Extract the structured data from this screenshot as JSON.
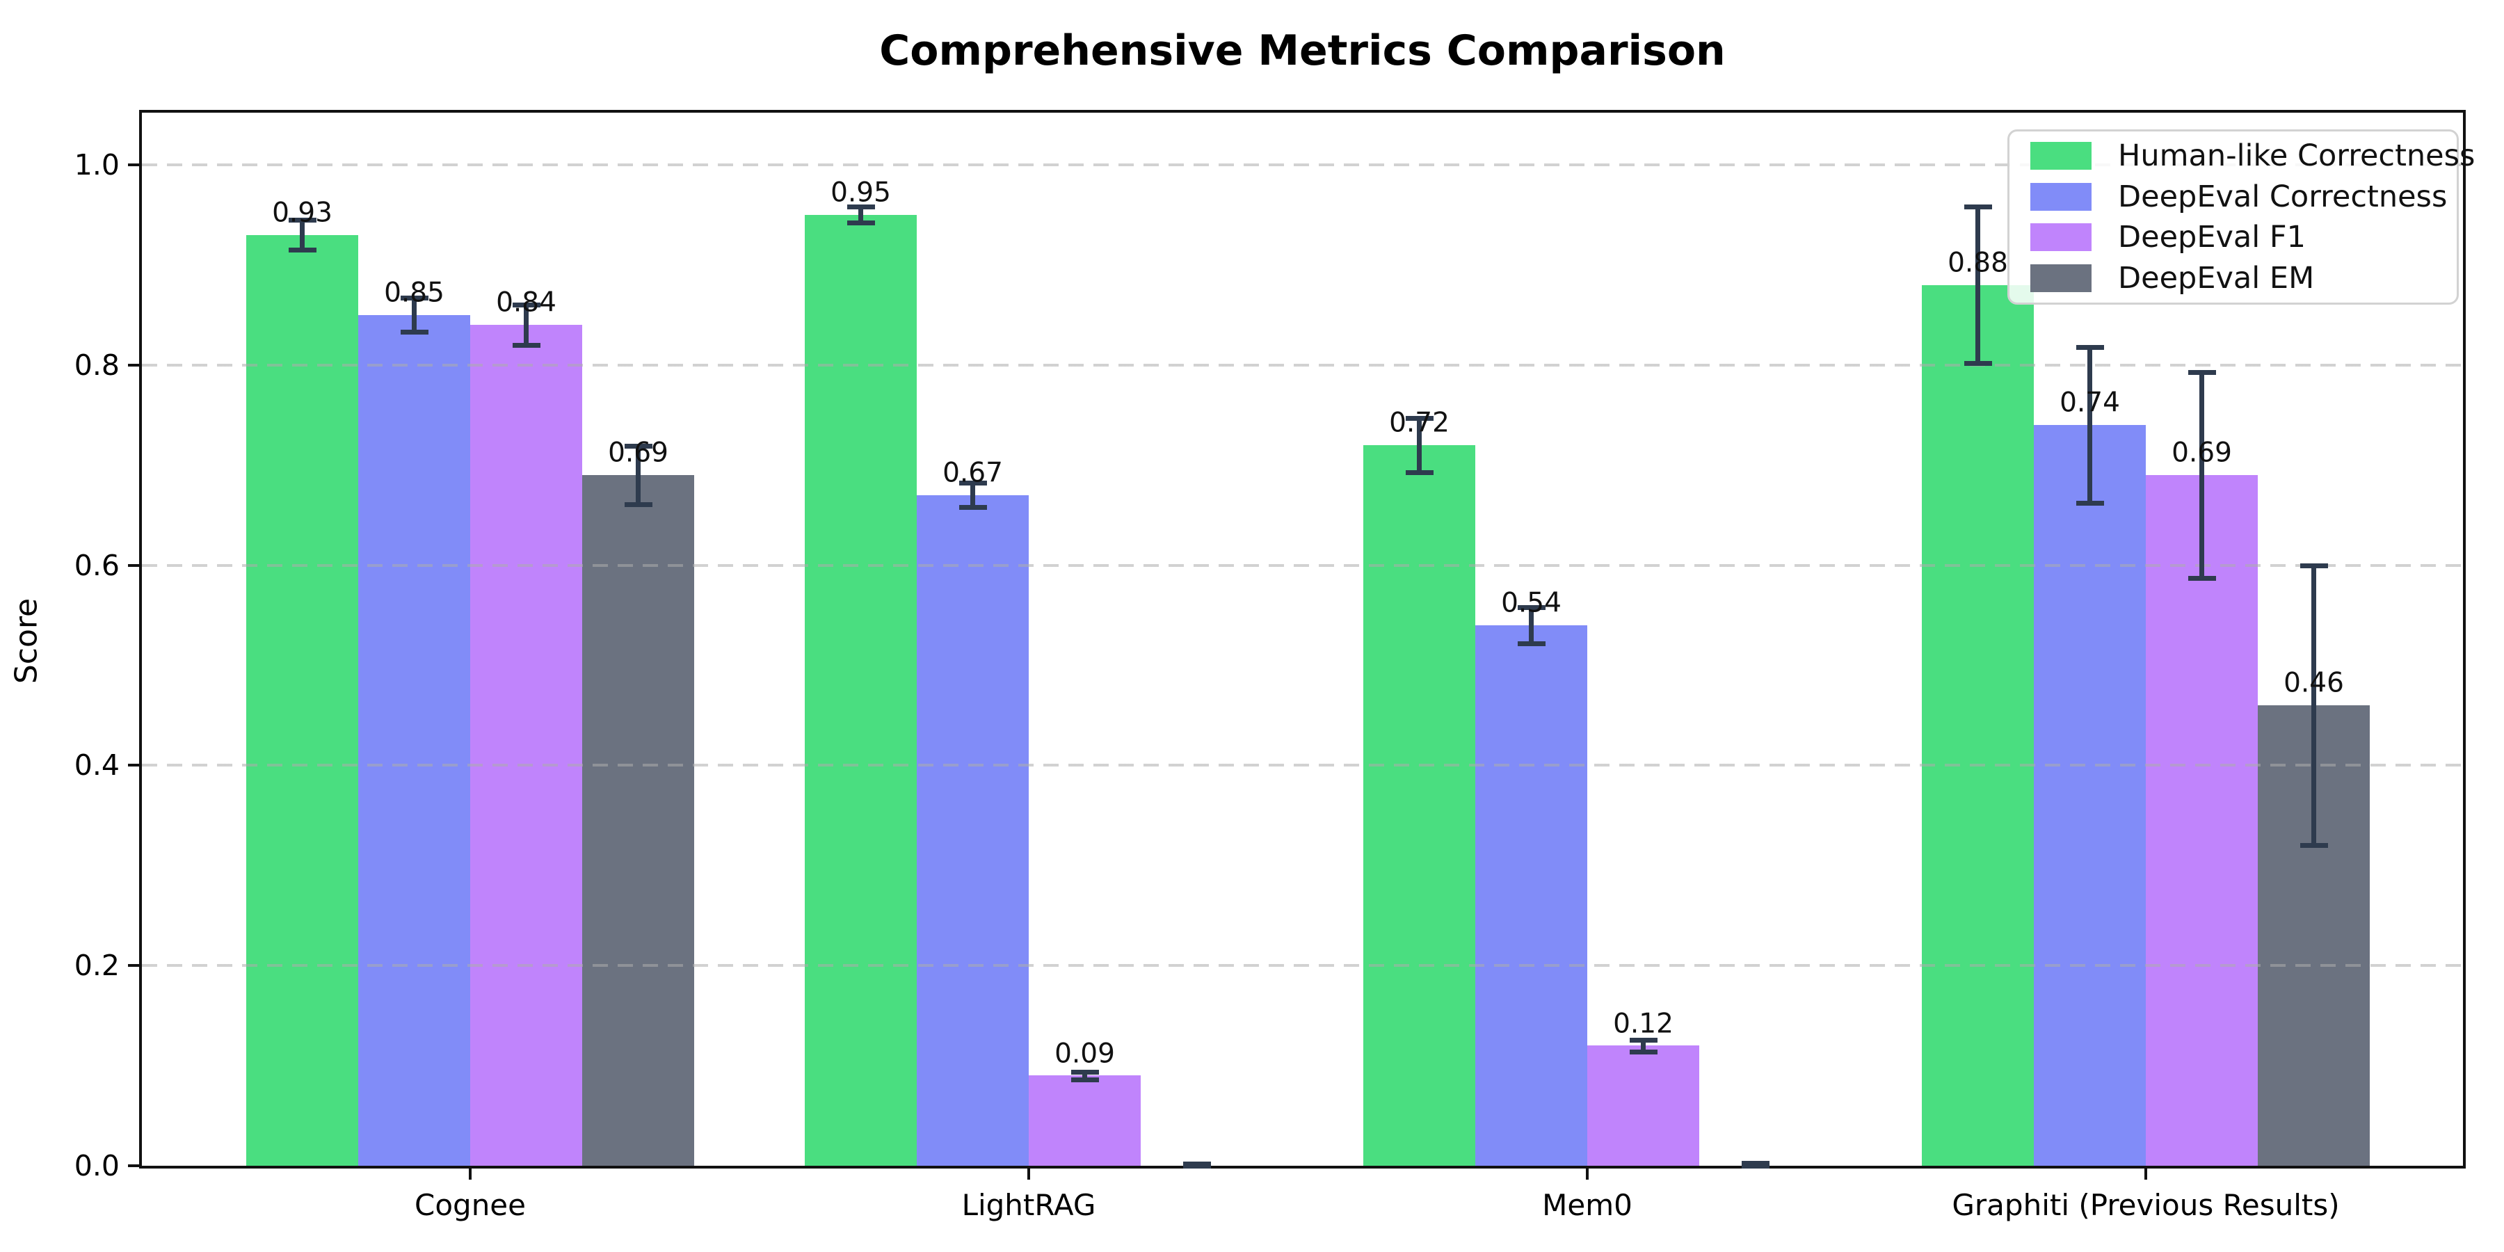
{
  "figure": {
    "title": "Comprehensive Metrics Comparison",
    "ylabel": "Score",
    "background": "#ffffff",
    "spine_color": "#111111"
  },
  "chart_data": {
    "type": "bar",
    "title": "Comprehensive Metrics Comparison",
    "xlabel": "",
    "ylabel": "Score",
    "categories": [
      "Cognee",
      "LightRAG",
      "Mem0",
      "Graphiti (Previous Results)"
    ],
    "series": [
      {
        "name": "Human-like Correctness",
        "color": "#4ade80",
        "values": [
          0.93,
          0.95,
          0.72,
          0.88
        ],
        "errors": [
          0.015,
          0.008,
          0.027,
          0.078
        ],
        "labels": [
          "0.93",
          "0.95",
          "0.72",
          "0.88"
        ]
      },
      {
        "name": "DeepEval Correctness",
        "color": "#818cf8",
        "values": [
          0.85,
          0.67,
          0.54,
          0.74
        ],
        "errors": [
          0.017,
          0.012,
          0.018,
          0.078
        ],
        "labels": [
          "0.85",
          "0.67",
          "0.54",
          "0.74"
        ]
      },
      {
        "name": "DeepEval F1",
        "color": "#c084fc",
        "values": [
          0.84,
          0.09,
          0.12,
          0.69
        ],
        "errors": [
          0.02,
          0.004,
          0.006,
          0.103
        ],
        "labels": [
          "0.84",
          "0.09",
          "0.12",
          "0.69"
        ]
      },
      {
        "name": "DeepEval EM",
        "color": "#6b7280",
        "values": [
          0.69,
          0.0,
          0.0,
          0.46
        ],
        "errors": [
          0.029,
          0.002,
          0.003,
          0.14
        ],
        "labels": [
          "0.69",
          null,
          null,
          "0.46"
        ]
      }
    ],
    "ylim": [
      0.0,
      1.052
    ],
    "yticks": [
      "0.0",
      "0.2",
      "0.4",
      "0.6",
      "0.8",
      "1.0"
    ],
    "grid": "horizontal-dashed",
    "grid_color": "#d9d9d9",
    "error_color": "#2e3b4e",
    "legend_position": "upper-right",
    "legend_labels": [
      "Human-like Correctness",
      "DeepEval Correctness",
      "DeepEval F1",
      "DeepEval EM"
    ]
  }
}
